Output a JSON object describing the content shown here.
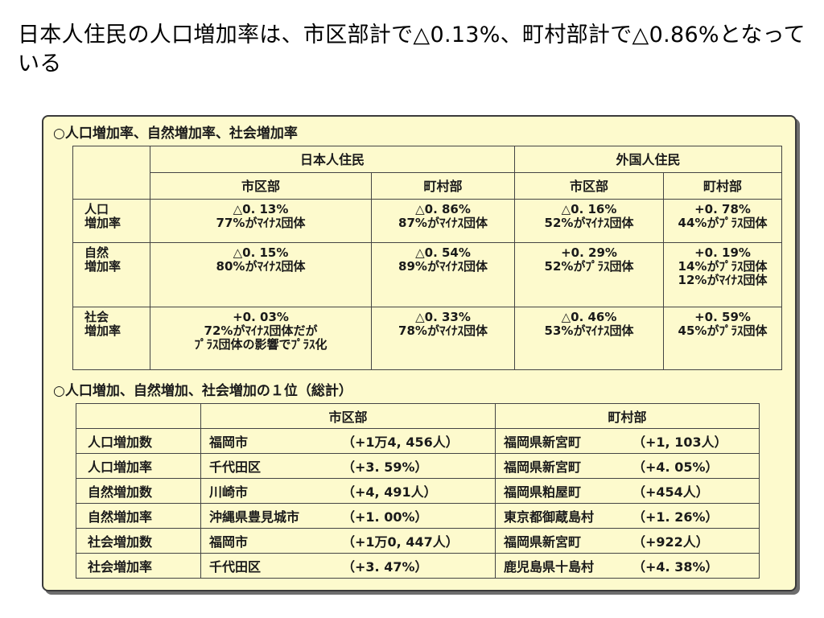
{
  "title": "日本人住民の人口増加率は、市区部計で△0.13%、町村部計で△0.86%となっている",
  "section1": {
    "title": "○人口増加率、自然増加率、社会増加率",
    "group_jp": "日本人住民",
    "group_foreign": "外国人住民",
    "col_city": "市区部",
    "col_town": "町村部",
    "rows": [
      {
        "label": [
          "人口",
          "増加率"
        ],
        "cells": [
          [
            "△0. 13%",
            "77%がﾏｲﾅｽ団体"
          ],
          [
            "△0. 86%",
            "87%がﾏｲﾅｽ団体"
          ],
          [
            "△0. 16%",
            "52%がﾏｲﾅｽ団体"
          ],
          [
            "+0. 78%",
            "44%がﾌﾟﾗｽ団体"
          ]
        ]
      },
      {
        "label": [
          "自然",
          "増加率"
        ],
        "cells": [
          [
            "△0. 15%",
            "80%がﾏｲﾅｽ団体"
          ],
          [
            "△0. 54%",
            "89%がﾏｲﾅｽ団体"
          ],
          [
            "+0. 29%",
            "52%がﾌﾟﾗｽ団体"
          ],
          [
            "+0. 19%",
            "14%がﾌﾟﾗｽ団体",
            "12%がﾏｲﾅｽ団体"
          ]
        ]
      },
      {
        "label": [
          "社会",
          "増加率"
        ],
        "cells": [
          [
            "+0. 03%",
            "72%がﾏｲﾅｽ団体だが",
            "ﾌﾟﾗｽ団体の影響でﾌﾟﾗｽ化"
          ],
          [
            "△0. 33%",
            "78%がﾏｲﾅｽ団体"
          ],
          [
            "△0. 46%",
            "53%がﾏｲﾅｽ団体"
          ],
          [
            "+0. 59%",
            "45%がﾌﾟﾗｽ団体"
          ]
        ]
      }
    ]
  },
  "section2": {
    "title": "○人口増加、自然増加、社会増加の１位（総計）",
    "col_city": "市区部",
    "col_town": "町村部",
    "rows": [
      {
        "label": "人口増加数",
        "city": "福岡市",
        "city_val": "（+1万4, 456人）",
        "town": "福岡県新宮町",
        "town_val": "（+1, 103人）"
      },
      {
        "label": "人口増加率",
        "city": "千代田区",
        "city_val": "（+3. 59%）",
        "town": "福岡県新宮町",
        "town_val": "（+4. 05%）"
      },
      {
        "label": "自然増加数",
        "city": "川崎市",
        "city_val": "（+4, 491人）",
        "town": "福岡県粕屋町",
        "town_val": "（+454人）"
      },
      {
        "label": "自然増加率",
        "city": "沖縄県豊見城市",
        "city_val": "（+1. 00%）",
        "town": "東京都御蔵島村",
        "town_val": "（+1. 26%）"
      },
      {
        "label": "社会増加数",
        "city": "福岡市",
        "city_val": "（+1万0, 447人）",
        "town": "福岡県新宮町",
        "town_val": "（+922人）"
      },
      {
        "label": "社会増加率",
        "city": "千代田区",
        "city_val": "（+3. 47%）",
        "town": "鹿児島県十島村",
        "town_val": "（+4. 38%）"
      }
    ]
  }
}
